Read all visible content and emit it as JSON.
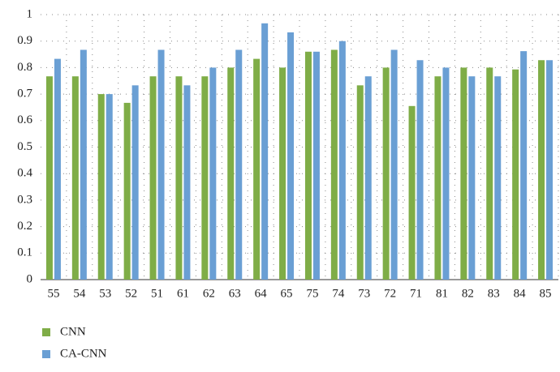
{
  "chart_data": {
    "type": "bar",
    "categories": [
      "55",
      "54",
      "53",
      "52",
      "51",
      "61",
      "62",
      "63",
      "64",
      "65",
      "75",
      "74",
      "73",
      "72",
      "71",
      "81",
      "82",
      "83",
      "84",
      "85"
    ],
    "series": [
      {
        "name": "CNN",
        "color": "#7fad47",
        "values": [
          0.767,
          0.767,
          0.7,
          0.667,
          0.767,
          0.767,
          0.767,
          0.8,
          0.833,
          0.8,
          0.86,
          0.867,
          0.733,
          0.8,
          0.655,
          0.767,
          0.8,
          0.8,
          0.793,
          0.828
        ]
      },
      {
        "name": "CA-CNN",
        "color": "#6a9fd4",
        "values": [
          0.833,
          0.867,
          0.7,
          0.733,
          0.867,
          0.733,
          0.8,
          0.867,
          0.967,
          0.933,
          0.86,
          0.9,
          0.767,
          0.867,
          0.828,
          0.8,
          0.767,
          0.767,
          0.862,
          0.828
        ]
      }
    ],
    "ylim": [
      0,
      1
    ],
    "yticks": [
      0,
      0.1,
      0.2,
      0.3,
      0.4,
      0.5,
      0.6,
      0.7,
      0.8,
      0.9,
      1
    ],
    "grid": true,
    "legend": "bottom-left"
  }
}
